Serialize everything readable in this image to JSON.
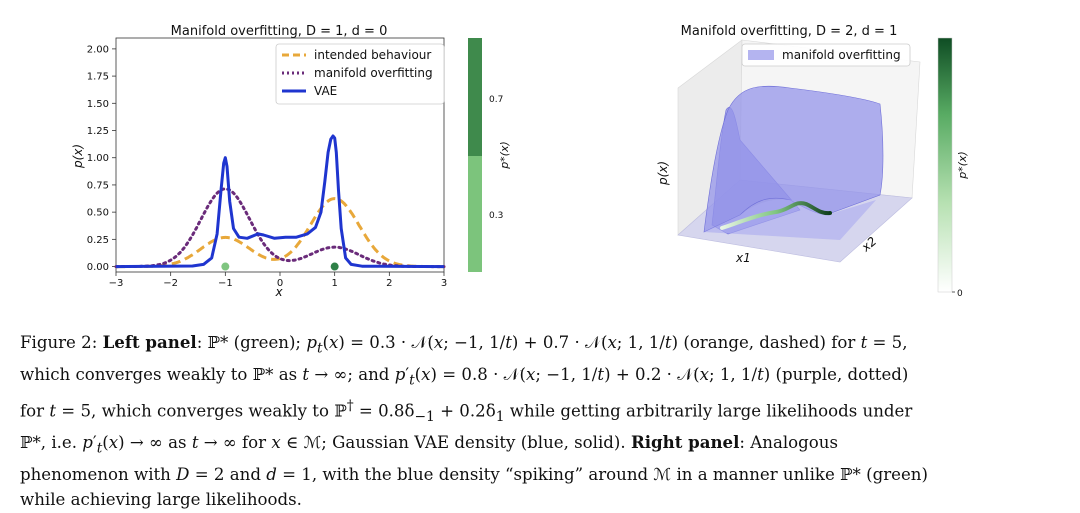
{
  "figure": {
    "left_panel": {
      "chart_data": {
        "type": "line",
        "title": "Manifold overfitting, D = 1, d = 0",
        "xlabel": "x",
        "ylabel": "p(x)",
        "xlim": [
          -3,
          3
        ],
        "ylim": [
          -0.05,
          2.1
        ],
        "xticks": [
          "−3",
          "−2",
          "−1",
          "0",
          "1",
          "2",
          "3"
        ],
        "yticks": [
          "0.00",
          "0.25",
          "0.50",
          "0.75",
          "1.00",
          "1.25",
          "1.50",
          "1.75",
          "2.00"
        ],
        "legend_position": "top-right",
        "series": [
          {
            "name": "intended behaviour",
            "color": "#e8a83a",
            "style": "dashed",
            "mixture": [
              {
                "w": 0.3,
                "mu": -1,
                "var": 0.2
              },
              {
                "w": 0.7,
                "mu": 1,
                "var": 0.2
              }
            ]
          },
          {
            "name": "manifold overfitting",
            "color": "#6a2b7a",
            "style": "dotted",
            "mixture": [
              {
                "w": 0.8,
                "mu": -1,
                "var": 0.2
              },
              {
                "w": 0.2,
                "mu": 1,
                "var": 0.2
              }
            ]
          },
          {
            "name": "VAE",
            "color": "#1f35cf",
            "style": "solid",
            "x": [
              -3,
              -1.6,
              -1.4,
              -1.25,
              -1.15,
              -1.08,
              -1.03,
              -1.0,
              -0.97,
              -0.92,
              -0.85,
              -0.75,
              -0.6,
              -0.4,
              -0.3,
              -0.1,
              0.1,
              0.3,
              0.5,
              0.65,
              0.75,
              0.82,
              0.88,
              0.93,
              0.97,
              1.0,
              1.03,
              1.07,
              1.12,
              1.2,
              1.3,
              1.5,
              3
            ],
            "y": [
              0,
              0.005,
              0.02,
              0.08,
              0.3,
              0.7,
              0.95,
              1.0,
              0.92,
              0.6,
              0.35,
              0.27,
              0.26,
              0.3,
              0.29,
              0.26,
              0.27,
              0.27,
              0.3,
              0.36,
              0.5,
              0.78,
              1.05,
              1.17,
              1.2,
              1.18,
              1.05,
              0.7,
              0.35,
              0.08,
              0.02,
              0.003,
              0
            ]
          }
        ],
        "points": [
          {
            "x": -1,
            "y": 0,
            "color": "#7fc580"
          },
          {
            "x": 1,
            "y": 0,
            "color": "#2e8047"
          }
        ],
        "colorbar": {
          "label": "p*(x)",
          "ticks": [
            "0.7",
            "0.3"
          ]
        }
      }
    },
    "right_panel": {
      "chart_data": {
        "type": "surface",
        "title": "Manifold overfitting, D = 2, d = 1",
        "xlabel": "x1",
        "ylabel": "x2",
        "zlabel": "p(x)",
        "legend": [
          "manifold overfitting"
        ],
        "legend_position": "top-right",
        "colorbar": {
          "label": "p*(x)",
          "ticks": [
            "0"
          ]
        }
      }
    },
    "caption": {
      "lines": [
        "Figure 2: <b>Left panel</b>: ℙ* (green); <i>p<sub>t</sub></i>(<i>x</i>) = 0.3 · 𝒩(<i>x</i>; −1, 1/<i>t</i>) + 0.7 · 𝒩(<i>x</i>; 1, 1/<i>t</i>) (orange, dashed) for <i>t</i> = 5,",
        "which converges weakly to ℙ* as <i>t</i> → ∞; and <i>p</i>′<sub><i>t</i></sub>(<i>x</i>) = 0.8 · 𝒩(<i>x</i>; −1, 1/<i>t</i>) + 0.2 · 𝒩(<i>x</i>; 1, 1/<i>t</i>) (purple, dotted)",
        "for <i>t</i> = 5, which converges weakly to ℙ<sup>†</sup> = 0.8δ<sub>−1</sub> + 0.2δ<sub>1</sub> while getting arbitrarily large likelihoods under",
        "ℙ*, i.e. <i>p</i>′<sub><i>t</i></sub>(<i>x</i>) → ∞ as <i>t</i> → ∞ for <i>x</i> ∈ ℳ; Gaussian VAE density (blue, solid). <b>Right panel</b>: Analogous",
        "phenomenon with <i>D</i> = 2 and <i>d</i> = 1, with the blue density “spiking” around ℳ in a manner unlike ℙ* (green)",
        "while achieving large likelihoods."
      ]
    }
  }
}
